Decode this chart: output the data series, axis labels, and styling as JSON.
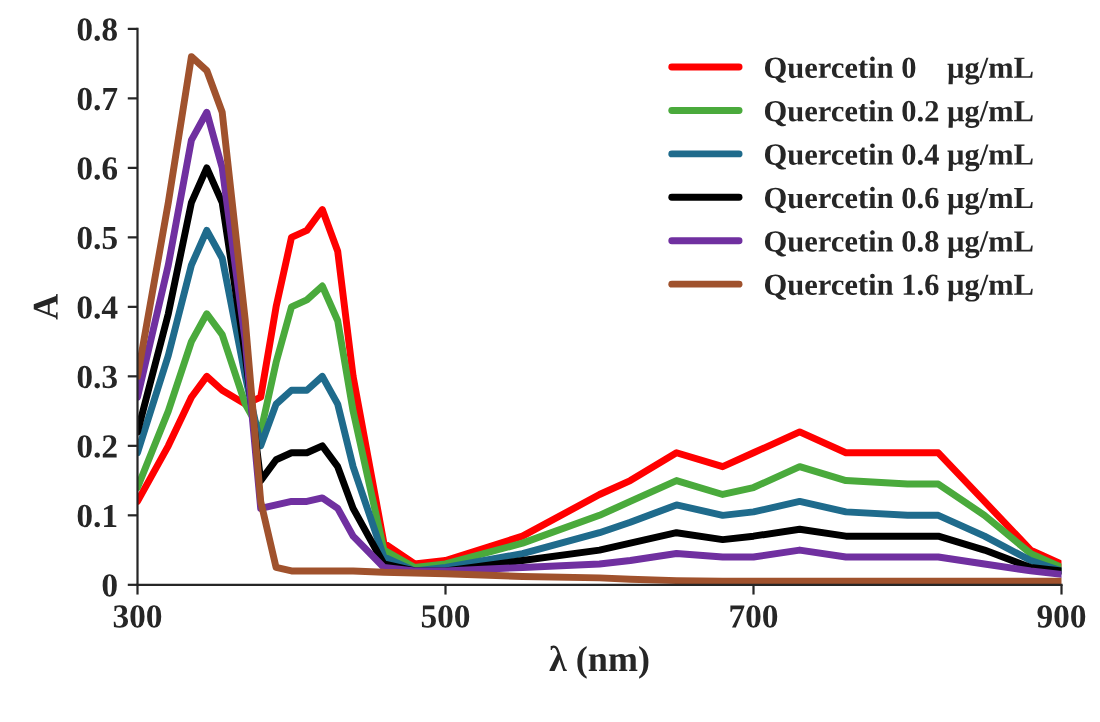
{
  "chart_data": {
    "type": "line",
    "xlabel": "λ (nm)",
    "ylabel": "A",
    "xlim": [
      300,
      900
    ],
    "xticks": [
      300,
      500,
      700,
      900
    ],
    "ylim": [
      0,
      0.8
    ],
    "yticks": [
      0,
      0.1,
      0.2,
      0.3,
      0.4,
      0.5,
      0.6,
      0.7,
      0.8
    ],
    "grid": false,
    "legend": "top right",
    "marker": "none",
    "line_style": "solid",
    "x": [
      300,
      320,
      335,
      345,
      355,
      370,
      380,
      390,
      400,
      410,
      420,
      430,
      440,
      460,
      480,
      500,
      550,
      600,
      620,
      650,
      680,
      700,
      730,
      760,
      800,
      820,
      850,
      880,
      900
    ],
    "series": [
      {
        "name": "Quercetin 0    μg/mL",
        "color": "#ff0000",
        "values": [
          0.12,
          0.2,
          0.27,
          0.3,
          0.28,
          0.26,
          0.27,
          0.4,
          0.5,
          0.51,
          0.54,
          0.48,
          0.3,
          0.06,
          0.03,
          0.035,
          0.07,
          0.13,
          0.15,
          0.19,
          0.17,
          0.19,
          0.22,
          0.19,
          0.19,
          0.19,
          0.12,
          0.05,
          0.03
        ]
      },
      {
        "name": "Quercetin 0.2 μg/mL",
        "color": "#4aaa3c",
        "values": [
          0.14,
          0.25,
          0.35,
          0.39,
          0.36,
          0.26,
          0.22,
          0.32,
          0.4,
          0.41,
          0.43,
          0.38,
          0.25,
          0.05,
          0.025,
          0.03,
          0.06,
          0.1,
          0.12,
          0.15,
          0.13,
          0.14,
          0.17,
          0.15,
          0.145,
          0.145,
          0.1,
          0.045,
          0.025
        ]
      },
      {
        "name": "Quercetin 0.4 μg/mL",
        "color": "#1f6b8c",
        "values": [
          0.19,
          0.33,
          0.46,
          0.51,
          0.47,
          0.3,
          0.2,
          0.26,
          0.28,
          0.28,
          0.3,
          0.26,
          0.17,
          0.04,
          0.02,
          0.025,
          0.045,
          0.075,
          0.09,
          0.115,
          0.1,
          0.105,
          0.12,
          0.105,
          0.1,
          0.1,
          0.07,
          0.035,
          0.02
        ]
      },
      {
        "name": "Quercetin 0.6 μg/mL",
        "color": "#000000",
        "values": [
          0.22,
          0.39,
          0.55,
          0.6,
          0.55,
          0.33,
          0.15,
          0.18,
          0.19,
          0.19,
          0.2,
          0.17,
          0.11,
          0.03,
          0.02,
          0.02,
          0.035,
          0.05,
          0.06,
          0.075,
          0.065,
          0.07,
          0.08,
          0.07,
          0.07,
          0.07,
          0.05,
          0.025,
          0.02
        ]
      },
      {
        "name": "Quercetin 0.8 μg/mL",
        "color": "#7030a0",
        "values": [
          0.27,
          0.46,
          0.64,
          0.68,
          0.6,
          0.35,
          0.11,
          0.115,
          0.12,
          0.12,
          0.125,
          0.11,
          0.07,
          0.025,
          0.02,
          0.02,
          0.025,
          0.03,
          0.035,
          0.045,
          0.04,
          0.04,
          0.05,
          0.04,
          0.04,
          0.04,
          0.03,
          0.02,
          0.015
        ]
      },
      {
        "name": "Quercetin 1.6 μg/mL",
        "color": "#a0522d",
        "values": [
          0.3,
          0.55,
          0.76,
          0.74,
          0.68,
          0.38,
          0.12,
          0.025,
          0.02,
          0.02,
          0.02,
          0.02,
          0.02,
          0.018,
          0.017,
          0.016,
          0.012,
          0.01,
          0.008,
          0.006,
          0.005,
          0.005,
          0.005,
          0.005,
          0.005,
          0.005,
          0.005,
          0.005,
          0.005
        ]
      }
    ]
  }
}
